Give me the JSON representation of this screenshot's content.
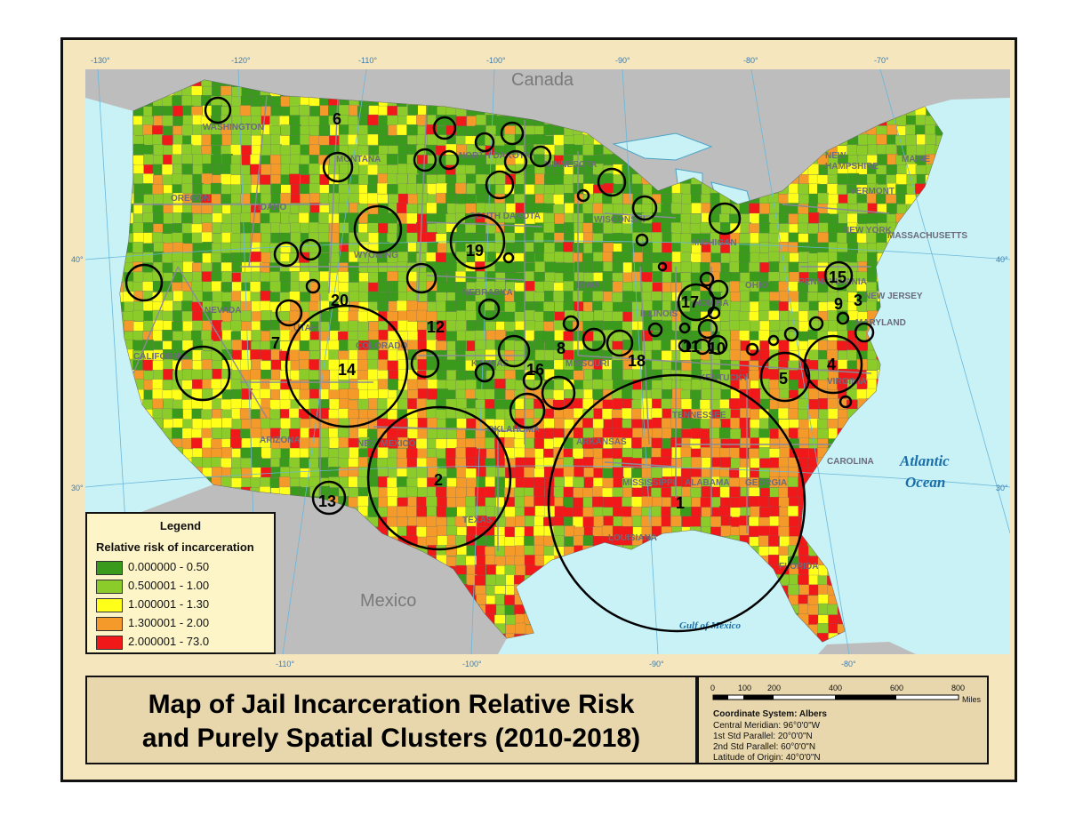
{
  "title": {
    "line1": "Map of Jail Incarceration Relative Risk",
    "line2": "and Purely Spatial Clusters (2010-2018)"
  },
  "legend": {
    "heading": "Legend",
    "subheading": "Relative risk of incarceration",
    "classes": [
      {
        "range": "0.000000 - 0.50",
        "color": "#3a9a1c"
      },
      {
        "range": "0.500001 - 1.00",
        "color": "#8ccc2a"
      },
      {
        "range": "1.000001 - 1.30",
        "color": "#ffff1a"
      },
      {
        "range": "1.300001 - 2.00",
        "color": "#f39a2a"
      },
      {
        "range": "2.000001 - 73.0",
        "color": "#f01818"
      }
    ]
  },
  "coordinate_system": {
    "heading": "Coordinate System: Albers",
    "lines": [
      "Central Meridian: 96°0'0\"W",
      "1st Std Parallel: 20°0'0\"N",
      "2nd Std Parallel: 60°0'0\"N",
      "Latitude of Origin: 40°0'0\"N"
    ]
  },
  "scale_bar": {
    "ticks": [
      "0",
      "100",
      "200",
      "400",
      "600",
      "800"
    ],
    "unit": "Miles"
  },
  "graticule": {
    "top": [
      "-130°",
      "-120°",
      "-110°",
      "-100°",
      "-90°",
      "-80°",
      "-70°"
    ],
    "bottom": [
      "-110°",
      "-100°",
      "-90°",
      "-80°"
    ],
    "left": [
      "40°",
      "30°"
    ],
    "right": [
      "40°",
      "30°"
    ]
  },
  "places": {
    "canada": "Canada",
    "mexico": "Mexico",
    "atlantic1": "Atlantic",
    "atlantic2": "Ocean",
    "gulf": "Gulf of Mexico"
  },
  "states": [
    "WASHINGTON",
    "MONTANA",
    "NORTH DAKOTA",
    "MINNESOTA",
    "OREGON",
    "IDAHO",
    "SOUTH DAKOTA",
    "WISCONSIN",
    "WYOMING",
    "MICHIGAN",
    "NEBRASKA",
    "NEVADA",
    "UTAH",
    "COLORADO",
    "CALIFORNIA",
    "KANSAS",
    "MISSOURI",
    "KENTUCKY",
    "ARIZONA",
    "NEW MEXICO",
    "OKLAHOMA",
    "ARKANSAS",
    "TENNESSEE",
    "TEXAS",
    "MISSISSIPPI",
    "ALABAMA",
    "GEORGIA",
    "LOUISIANA",
    "FLORIDA",
    "CAROLINA",
    "MARYLAND",
    "NEW JERSEY",
    "NEW YORK",
    "MASSACHUSETTS",
    "VERMONT",
    "NEW HAMPSHIRE",
    "MAINE",
    "IOWA",
    "ILLINOIS",
    "INDIANA",
    "OHIO",
    "PENNSYLVANIA",
    "VIRGINIA"
  ],
  "clusters": [
    "1",
    "2",
    "3",
    "4",
    "5",
    "6",
    "7",
    "8",
    "9",
    "10",
    "11",
    "12",
    "13",
    "14",
    "15",
    "16",
    "17",
    "18",
    "19",
    "20"
  ],
  "colors": {
    "water": "#c9f2f7",
    "land_outside": "#bdbdbd",
    "frame": "#f5e6bd"
  }
}
